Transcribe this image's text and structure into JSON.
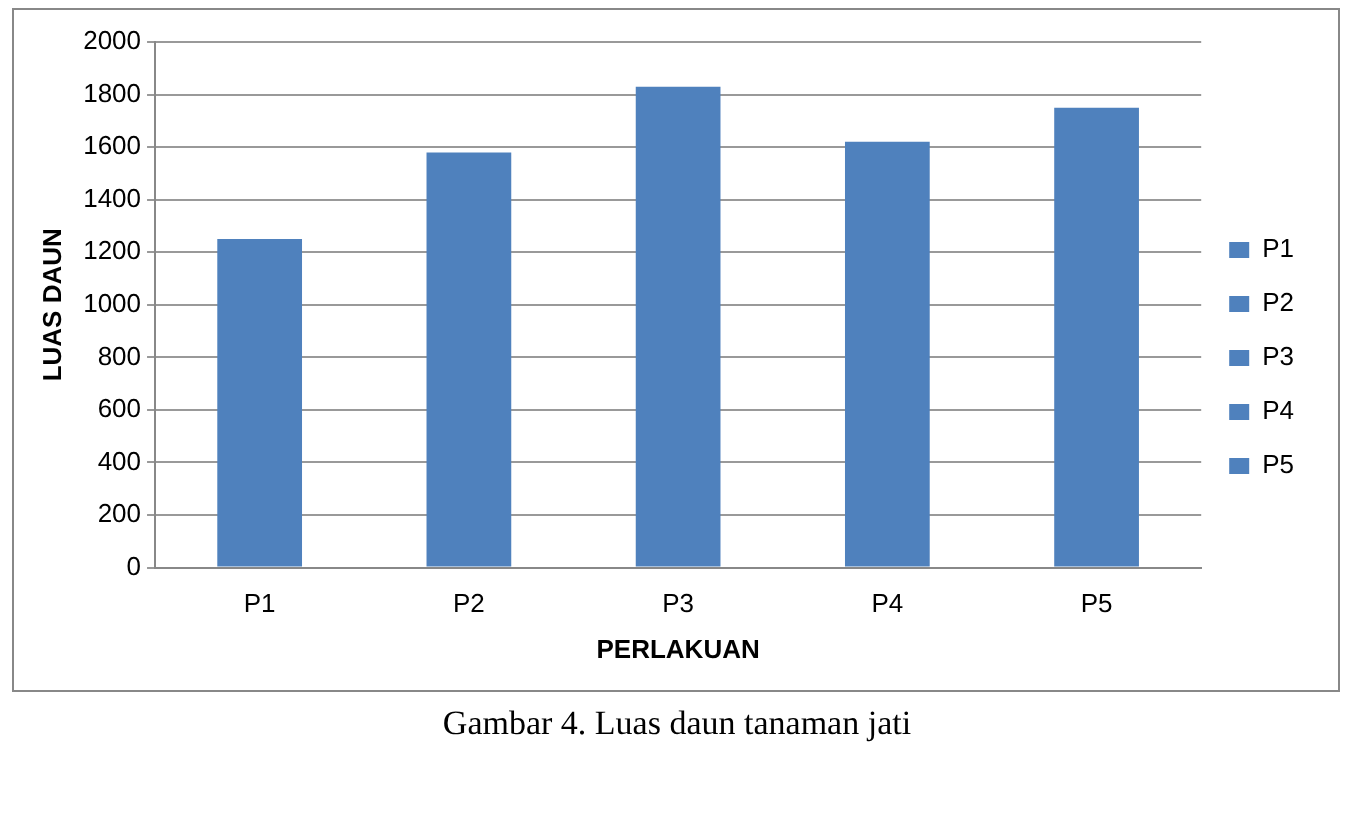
{
  "chart_data": {
    "type": "bar",
    "xlabel": "PERLAKUAN",
    "ylabel": "LUAS DAUN",
    "categories": [
      "P1",
      "P2",
      "P3",
      "P4",
      "P5"
    ],
    "series": [
      {
        "name": "P1",
        "color": "#4f81bd",
        "values": [
          1250,
          null,
          null,
          null,
          null
        ]
      },
      {
        "name": "P2",
        "color": "#4f81bd",
        "values": [
          null,
          1580,
          null,
          null,
          null
        ]
      },
      {
        "name": "P3",
        "color": "#4f81bd",
        "values": [
          null,
          null,
          1830,
          null,
          null
        ]
      },
      {
        "name": "P4",
        "color": "#4f81bd",
        "values": [
          null,
          null,
          null,
          1620,
          null
        ]
      },
      {
        "name": "P5",
        "color": "#4f81bd",
        "values": [
          null,
          null,
          null,
          null,
          1750
        ]
      }
    ],
    "ylim": [
      0,
      2000
    ],
    "yticks": [
      0,
      200,
      400,
      600,
      800,
      1000,
      1200,
      1400,
      1600,
      1800,
      2000
    ],
    "grid": "y",
    "legend": "right",
    "annotations": [
      "Gambar 4. Luas daun tanaman jati"
    ]
  }
}
